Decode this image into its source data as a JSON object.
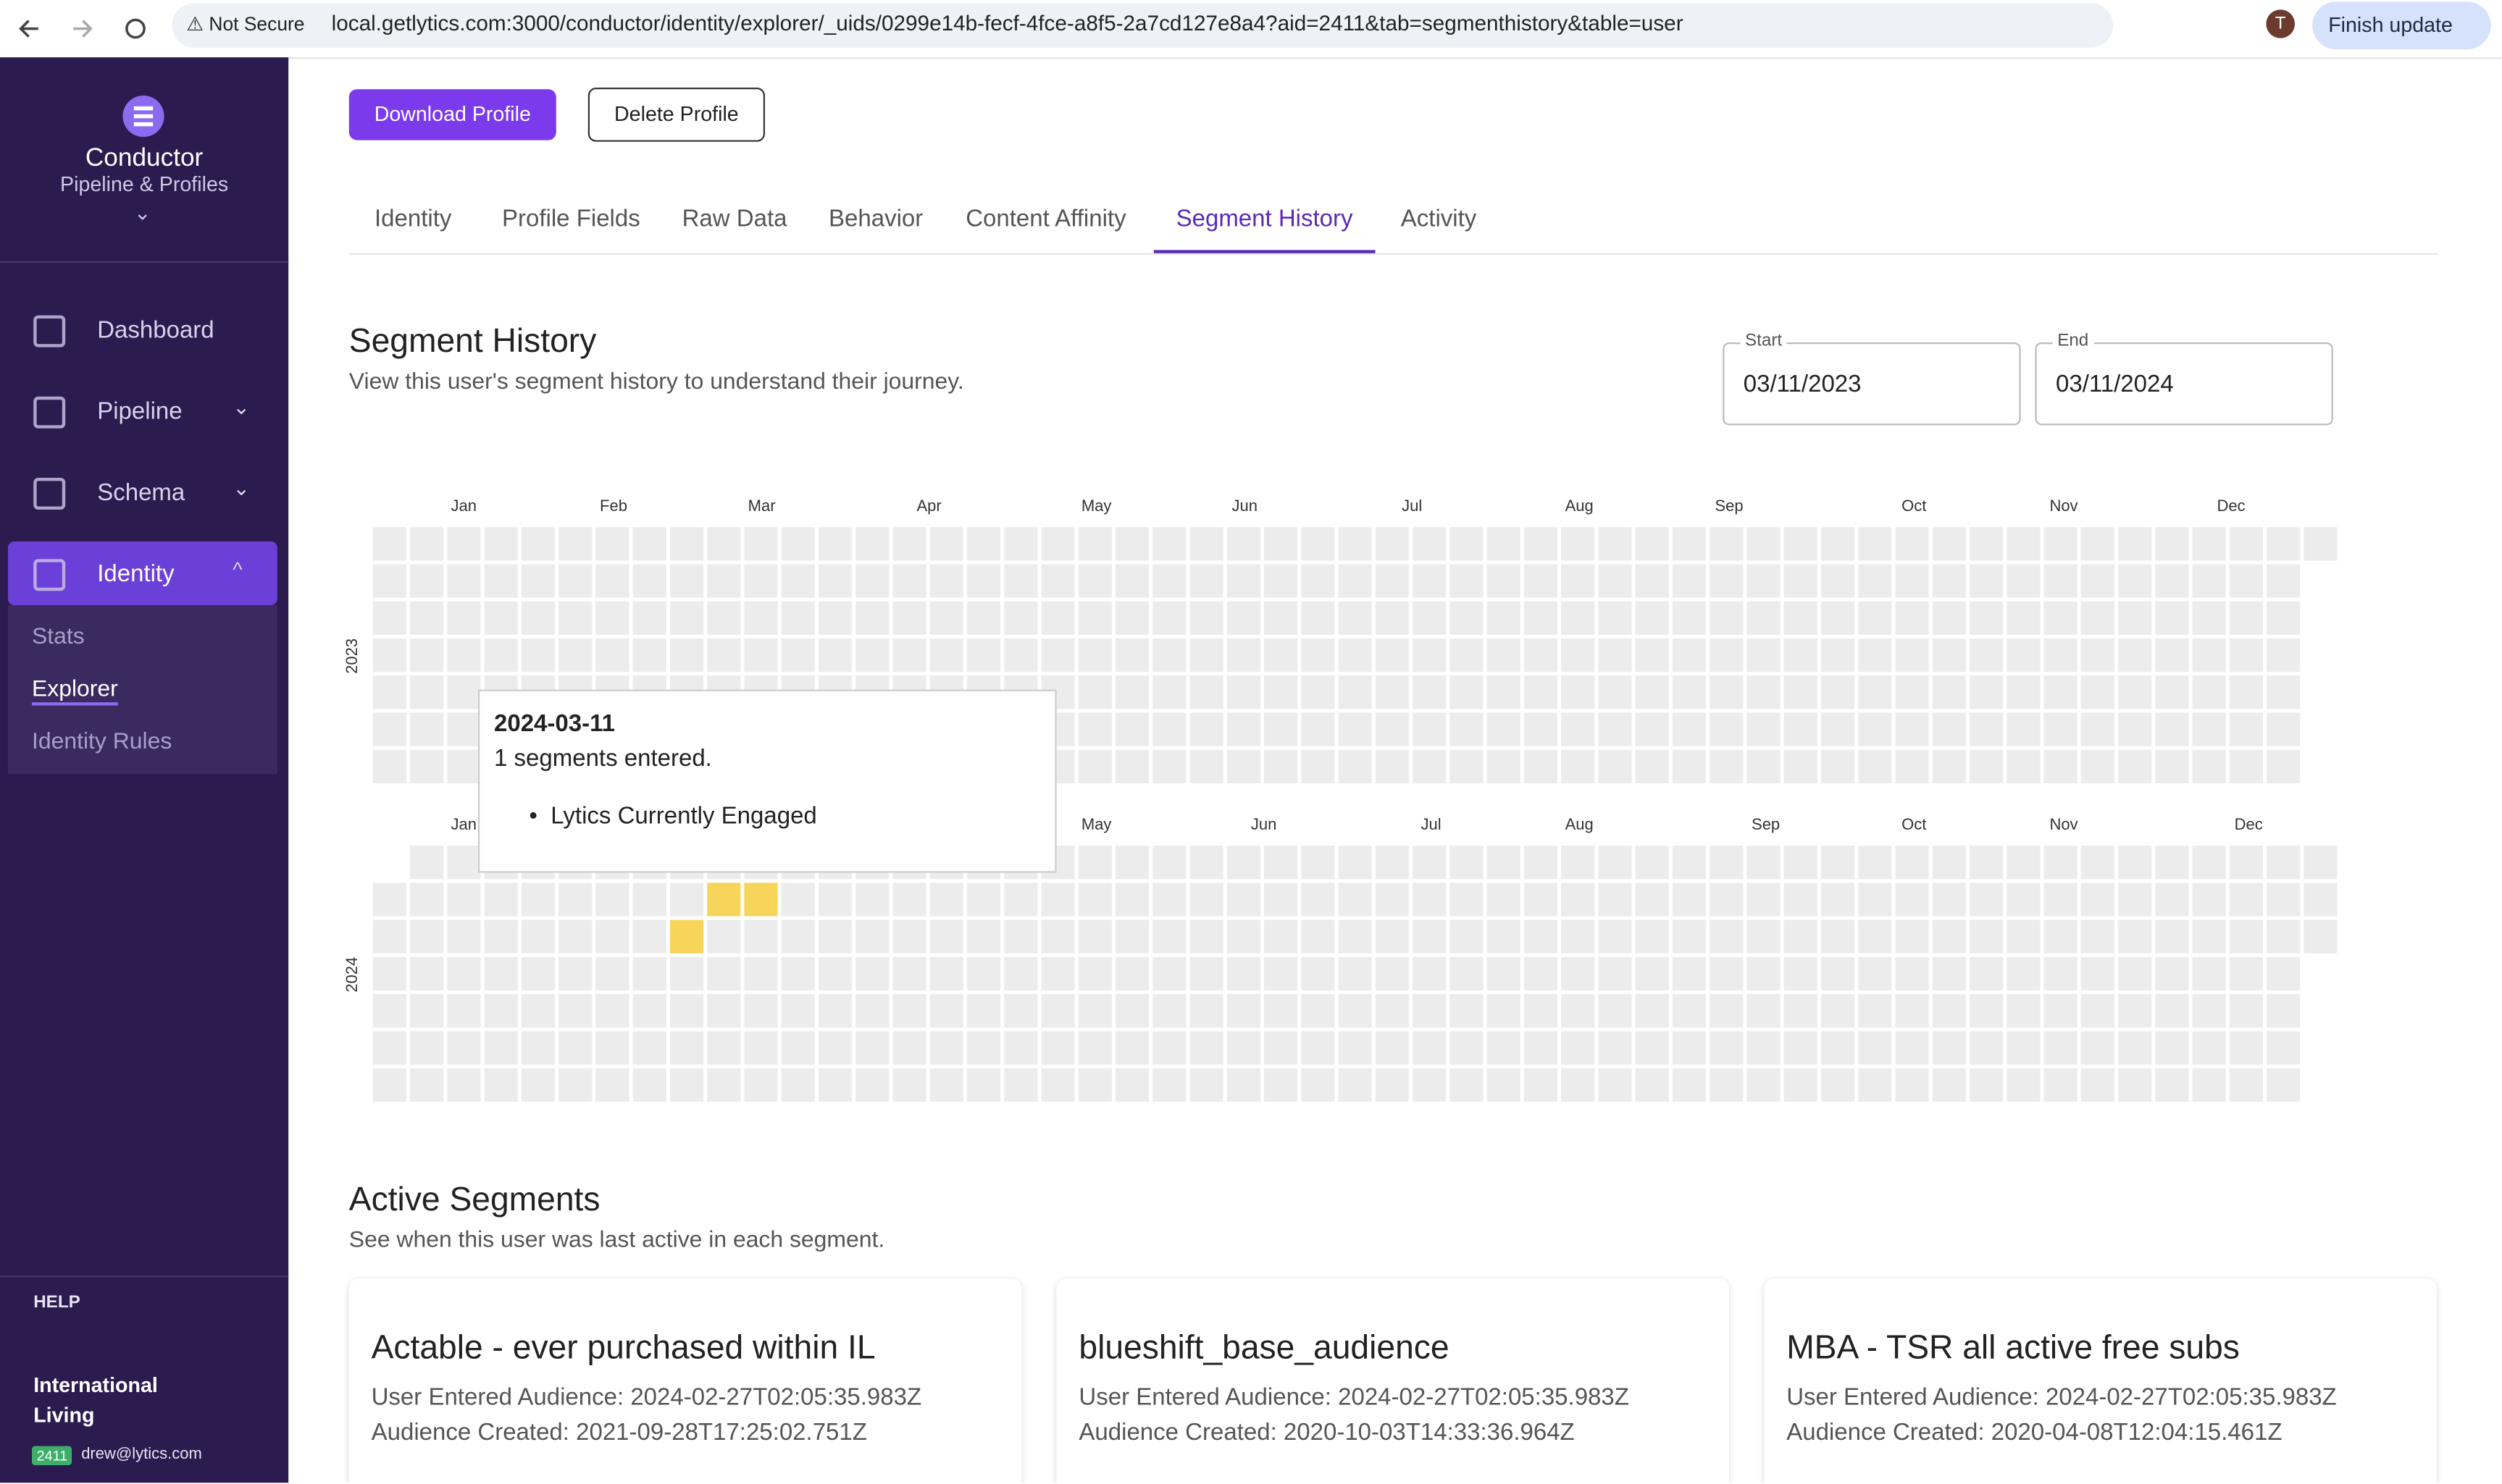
{
  "browser": {
    "security": "Not Secure",
    "url": "local.getlytics.com:3000/conductor/identity/explorer/_uids/0299e14b-fecf-4fce-a8f5-2a7cd127e8a4?aid=2411&tab=segmenthistory&table=user",
    "avatar": "T",
    "update": "Finish update"
  },
  "sidebar": {
    "app": "Conductor",
    "subtitle": "Pipeline & Profiles",
    "nav": [
      "Dashboard",
      "Pipeline",
      "Schema",
      "Identity"
    ],
    "subnav": [
      "Stats",
      "Explorer",
      "Identity Rules"
    ],
    "help": "HELP",
    "account": "International Living",
    "account_id": "2411",
    "email": "drew@lytics.com"
  },
  "actions": [
    "Download Profile",
    "Delete Profile"
  ],
  "tabs": [
    "Identity",
    "Profile Fields",
    "Raw Data",
    "Behavior",
    "Content Affinity",
    "Segment History",
    "Activity"
  ],
  "segment_history": {
    "title": "Segment History",
    "subtitle": "View this user's segment history to understand their journey.",
    "start_label": "Start",
    "start": "03/11/2023",
    "end_label": "End",
    "end": "03/11/2024",
    "years": [
      {
        "label": "2023",
        "months": [
          "Jan",
          "Feb",
          "Mar",
          "Apr",
          "May",
          "Jun",
          "Jul",
          "Aug",
          "Sep",
          "Oct",
          "Nov",
          "Dec"
        ]
      },
      {
        "label": "2024",
        "months": [
          "Jan",
          "May",
          "Jun",
          "Jul",
          "Aug",
          "Sep",
          "Oct",
          "Nov",
          "Dec"
        ]
      }
    ],
    "tooltip": {
      "date": "2024-03-11",
      "summary": "1 segments entered.",
      "items": [
        "Lytics Currently Engaged"
      ]
    }
  },
  "active_segments": {
    "title": "Active Segments",
    "subtitle": "See when this user was last active in each segment.",
    "cards": [
      {
        "name": "Actable - ever purchased within IL",
        "entered": "User Entered Audience: 2024-02-27T02:05:35.983Z",
        "created": "Audience Created: 2021-09-28T17:25:02.751Z"
      },
      {
        "name": "blueshift_base_audience",
        "entered": "User Entered Audience: 2024-02-27T02:05:35.983Z",
        "created": "Audience Created: 2020-10-03T14:33:36.964Z"
      },
      {
        "name": "MBA - TSR all active free subs",
        "entered": "User Entered Audience: 2024-02-27T02:05:35.983Z",
        "created": "Audience Created: 2020-04-08T12:04:15.461Z"
      }
    ]
  }
}
